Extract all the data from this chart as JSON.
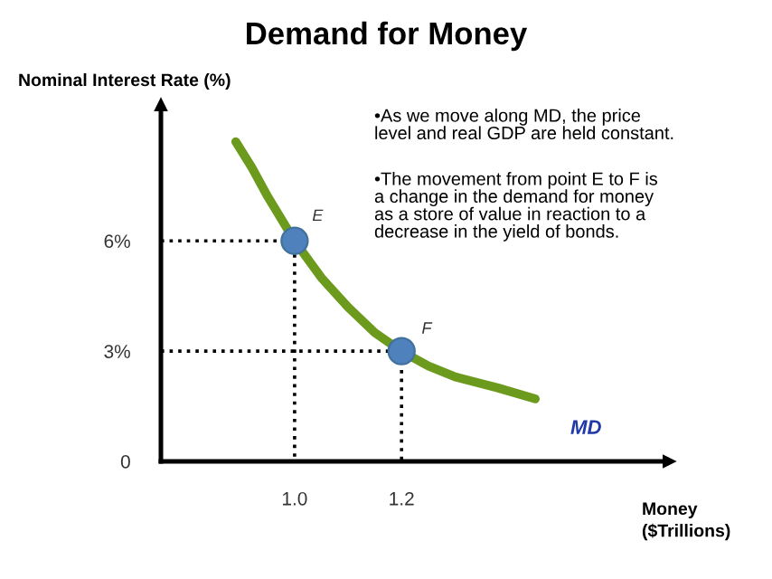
{
  "chart_data": {
    "type": "line",
    "title": "Demand for Money",
    "ylabel": "Nominal Interest Rate (%)",
    "xlabel": "Money\n($Trillions)",
    "xlim": [
      0.75,
      1.7
    ],
    "ylim": [
      0,
      9.7
    ],
    "xticks": [
      {
        "value": 1.0,
        "label": "1.0"
      },
      {
        "value": 1.2,
        "label": "1.2"
      }
    ],
    "yticks": [
      {
        "value": 0,
        "label": "0"
      },
      {
        "value": 3,
        "label": "3%"
      },
      {
        "value": 6,
        "label": "6%"
      }
    ],
    "grid": false,
    "legend": false,
    "series": [
      {
        "color": "#000000",
        "line_style": "dotted",
        "marker": "none",
        "x": [
          0.75,
          1.0,
          1.0
        ],
        "values": [
          6,
          6,
          0
        ]
      },
      {
        "color": "#000000",
        "line_style": "dotted",
        "marker": "none",
        "x": [
          0.75,
          1.2,
          1.2
        ],
        "values": [
          3,
          3,
          0
        ]
      },
      {
        "color": "#6b9a1c",
        "line_style": "solid",
        "marker": "none",
        "x": [
          0.89,
          0.92,
          0.95,
          1.0,
          1.05,
          1.1,
          1.15,
          1.2,
          1.25,
          1.3,
          1.38,
          1.45
        ],
        "values": [
          8.7,
          8.0,
          7.2,
          6,
          5.0,
          4.2,
          3.5,
          3,
          2.6,
          2.3,
          2.0,
          1.7
        ]
      },
      {
        "type": "scatter",
        "color": "#4f81bd",
        "marker": "circle",
        "x": [
          1.0,
          1.2
        ],
        "values": [
          6,
          3
        ]
      }
    ],
    "annotations": [
      {
        "text": "E",
        "x": 1.0,
        "y": 6
      },
      {
        "text": "F",
        "x": 1.2,
        "y": 3
      },
      {
        "text": "MD",
        "x": 1.45,
        "y": 1.7
      },
      "•As we move along MD, the price\nlevel and real GDP are held constant.",
      "•The movement from point E to F is\na change in the demand for money\nas a store of value in reaction to a\ndecrease in the yield of bonds."
    ]
  }
}
